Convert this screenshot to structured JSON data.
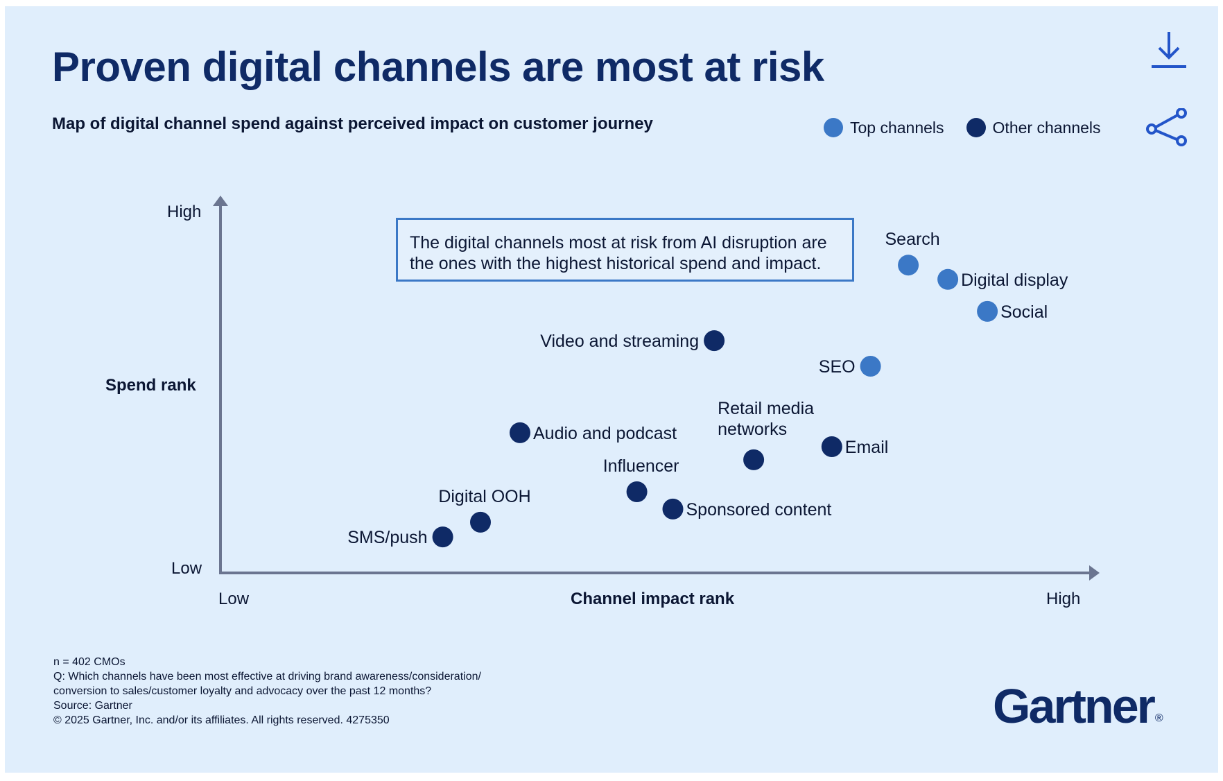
{
  "header": {
    "title": "Proven digital channels are most at risk",
    "subtitle": "Map of digital channel spend against perceived impact on customer journey",
    "download_icon": "download-icon",
    "share_icon": "share-icon"
  },
  "colors": {
    "background": "#E0EEFC",
    "top_channels": "#3B78C6",
    "other_channels": "#0F2A66",
    "axis": "#6B7590",
    "title": "#0F2A66",
    "icon": "#2355C9"
  },
  "callout": {
    "line1": "The digital channels most at risk from AI disruption are",
    "line2": "the ones with the highest historical spend and impact."
  },
  "footer": {
    "n": "n = 402 CMOs",
    "q1": "Q: Which channels have been most effective at driving brand awareness/consideration/",
    "q2": "conversion to sales/customer loyalty and advocacy over the past 12 months?",
    "source": "Source: Gartner",
    "copyright": "© 2025 Gartner, Inc. and/or its affiliates. All rights reserved. 4275350"
  },
  "logo": {
    "text": "Gartner",
    "mark": "®"
  },
  "chart_data": {
    "type": "scatter",
    "title": "Proven digital channels are most at risk",
    "subtitle": "Map of digital channel spend against perceived impact on customer journey",
    "xlabel": "Channel impact rank",
    "ylabel": "Spend rank",
    "x_ticks": {
      "low": "Low",
      "high": "High"
    },
    "y_ticks": {
      "low": "Low",
      "high": "High"
    },
    "xlim": [
      0,
      100
    ],
    "ylim": [
      0,
      100
    ],
    "grid": false,
    "legend_position": "top-right",
    "legend": [
      {
        "name": "Top channels",
        "key": "top"
      },
      {
        "name": "Other channels",
        "key": "other"
      }
    ],
    "series": [
      {
        "name": "Top channels",
        "key": "top",
        "points": [
          {
            "label": "Search",
            "x": 78.3,
            "y": 81.7,
            "label_pos": "above"
          },
          {
            "label": "Digital display",
            "x": 82.8,
            "y": 77.9,
            "label_pos": "right"
          },
          {
            "label": "Social",
            "x": 87.3,
            "y": 69.4,
            "label_pos": "right"
          },
          {
            "label": "SEO",
            "x": 74.0,
            "y": 54.8,
            "label_pos": "left"
          }
        ]
      },
      {
        "name": "Other channels",
        "key": "other",
        "points": [
          {
            "label": "Video and streaming",
            "x": 56.2,
            "y": 61.6,
            "label_pos": "left"
          },
          {
            "label": "Audio and podcast",
            "x": 34.1,
            "y": 37.1,
            "label_pos": "right"
          },
          {
            "label": "Retail media networks",
            "x": 60.7,
            "y": 29.9,
            "label_pos": "above-two-line",
            "label_lines": [
              "Retail media",
              "networks"
            ]
          },
          {
            "label": "Email",
            "x": 69.6,
            "y": 33.4,
            "label_pos": "right"
          },
          {
            "label": "Influencer",
            "x": 47.4,
            "y": 21.4,
            "label_pos": "above"
          },
          {
            "label": "Sponsored content",
            "x": 51.5,
            "y": 16.8,
            "label_pos": "right"
          },
          {
            "label": "Digital OOH",
            "x": 29.6,
            "y": 13.3,
            "label_pos": "above"
          },
          {
            "label": "SMS/push",
            "x": 25.3,
            "y": 9.4,
            "label_pos": "left"
          }
        ]
      }
    ]
  }
}
